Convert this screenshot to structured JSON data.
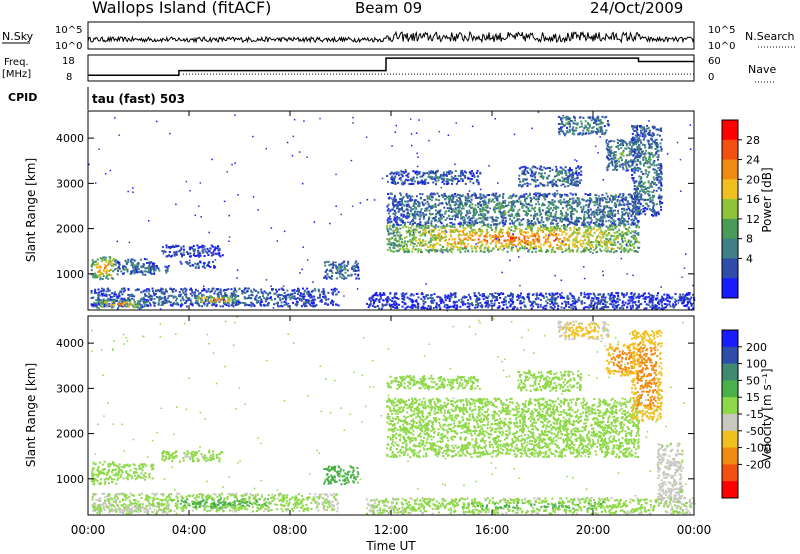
{
  "header": {
    "station": "Wallops Island (fitACF)",
    "beam": "Beam 09",
    "date": "24/Oct/2009"
  },
  "time_axis": {
    "label": "Time UT",
    "ticks": [
      "00:00",
      "04:00",
      "08:00",
      "12:00",
      "16:00",
      "20:00",
      "00:00"
    ]
  },
  "sky_panel": {
    "left_label": "N.Sky",
    "right_label": "N.Search",
    "left_ticks": [
      "10^5",
      "10^0"
    ],
    "right_ticks": [
      "10^5",
      "10^0"
    ]
  },
  "freq_panel": {
    "left_label_1": "Freq.",
    "left_label_2": "[MHz]",
    "right_label": "Nave",
    "left_ticks": [
      "18",
      "8"
    ],
    "right_ticks": [
      "60",
      "0"
    ]
  },
  "cpid": {
    "label": "CPID",
    "mode": "tau (fast) 503"
  },
  "power_panel": {
    "ylabel": "Slant Range [km]",
    "yticks": [
      "1000",
      "2000",
      "3000",
      "4000"
    ],
    "colorbar_label": "Power [dB]",
    "colorbar_ticks": [
      "4",
      "8",
      "12",
      "16",
      "20",
      "24",
      "28"
    ],
    "colors": [
      "#1a1aff",
      "#2e4ca8",
      "#3f7f8a",
      "#4a9a5a",
      "#8ec43a",
      "#f0c020",
      "#f08a10",
      "#f05010",
      "#ff0000"
    ]
  },
  "velocity_panel": {
    "ylabel": "Slant Range [km]",
    "yticks": [
      "1000",
      "2000",
      "3000",
      "4000"
    ],
    "colorbar_label": "Velocity [m s⁻¹]",
    "colorbar_ticks": [
      "200",
      "100",
      "50",
      "15",
      "-15",
      "-50",
      "-100",
      "-200"
    ],
    "colors": [
      "#1a1aff",
      "#2e4ca8",
      "#3f8a70",
      "#4ab04a",
      "#8fd84a",
      "#c8c8c0",
      "#f0c020",
      "#f08a10",
      "#f05010",
      "#ff0000"
    ]
  },
  "chart_data": {
    "type": "heatmap",
    "x_unit": "hours UT",
    "xlim": [
      0,
      24
    ],
    "ylim": [
      200,
      4600
    ],
    "freq": {
      "xlim": [
        0,
        24
      ],
      "ylim": [
        8,
        18
      ],
      "steps": [
        {
          "from": 0,
          "to": 3.6,
          "value": 10.2
        },
        {
          "from": 3.6,
          "to": 11.8,
          "value": 12.0
        },
        {
          "from": 11.8,
          "to": 21.8,
          "value": 16.8
        },
        {
          "from": 21.8,
          "to": 24,
          "value": 15.5
        }
      ]
    },
    "nave_level": 16,
    "power_regions": [
      {
        "x": [
          0.1,
          1.1
        ],
        "y": [
          900,
          1400
        ],
        "core": 26,
        "edge": 10
      },
      {
        "x": [
          1.1,
          2.6
        ],
        "y": [
          1000,
          1350
        ],
        "core": 10,
        "edge": 5
      },
      {
        "x": [
          1.7,
          3.2
        ],
        "y": [
          1050,
          1200
        ],
        "core": 10,
        "edge": 5
      },
      {
        "x": [
          2.9,
          5.3
        ],
        "y": [
          1400,
          1650
        ],
        "core": 6,
        "edge": 3
      },
      {
        "x": [
          3.6,
          5.0
        ],
        "y": [
          1150,
          1300
        ],
        "core": 8,
        "edge": 4
      },
      {
        "x": [
          0.1,
          9.9
        ],
        "y": [
          300,
          700
        ],
        "core": 8,
        "edge": 4
      },
      {
        "x": [
          0.2,
          2.3
        ],
        "y": [
          250,
          450
        ],
        "core": 24,
        "edge": 8
      },
      {
        "x": [
          4.2,
          5.8
        ],
        "y": [
          380,
          520
        ],
        "core": 27,
        "edge": 12
      },
      {
        "x": [
          9.3,
          10.7
        ],
        "y": [
          900,
          1300
        ],
        "core": 10,
        "edge": 5
      },
      {
        "x": [
          11.8,
          21.8
        ],
        "y": [
          1500,
          2100
        ],
        "core": 26,
        "edge": 12
      },
      {
        "x": [
          11.8,
          21.8
        ],
        "y": [
          2100,
          2800
        ],
        "core": 12,
        "edge": 6
      },
      {
        "x": [
          11.8,
          15.5
        ],
        "y": [
          3000,
          3300
        ],
        "core": 8,
        "edge": 4
      },
      {
        "x": [
          17.0,
          19.5
        ],
        "y": [
          2950,
          3400
        ],
        "core": 10,
        "edge": 5
      },
      {
        "x": [
          18.6,
          20.6
        ],
        "y": [
          4100,
          4500
        ],
        "core": 12,
        "edge": 6
      },
      {
        "x": [
          20.5,
          21.8
        ],
        "y": [
          3300,
          4000
        ],
        "core": 14,
        "edge": 6
      },
      {
        "x": [
          21.5,
          22.7
        ],
        "y": [
          2300,
          4300
        ],
        "core": 12,
        "edge": 5
      },
      {
        "x": [
          11.0,
          24.0
        ],
        "y": [
          250,
          600
        ],
        "core": 6,
        "edge": 3
      }
    ],
    "velocity_regions": [
      {
        "x": [
          0.1,
          1.1
        ],
        "y": [
          900,
          1400
        ],
        "core": 0,
        "edge": 0
      },
      {
        "x": [
          1.1,
          2.6
        ],
        "y": [
          1000,
          1350
        ],
        "core": 0,
        "edge": 0
      },
      {
        "x": [
          2.9,
          5.3
        ],
        "y": [
          1400,
          1650
        ],
        "core": -20,
        "edge": 5
      },
      {
        "x": [
          0.1,
          9.9
        ],
        "y": [
          300,
          700
        ],
        "core": 30,
        "edge": -20
      },
      {
        "x": [
          0.2,
          3.2
        ],
        "y": [
          250,
          450
        ],
        "core": -30,
        "edge": -10
      },
      {
        "x": [
          4.2,
          5.8
        ],
        "y": [
          380,
          520
        ],
        "core": 30,
        "edge": 20
      },
      {
        "x": [
          9.3,
          10.7
        ],
        "y": [
          900,
          1300
        ],
        "core": 35,
        "edge": 20
      },
      {
        "x": [
          11.8,
          21.8
        ],
        "y": [
          1500,
          2200
        ],
        "core": 0,
        "edge": 0
      },
      {
        "x": [
          11.8,
          21.8
        ],
        "y": [
          2200,
          2800
        ],
        "core": 0,
        "edge": 0
      },
      {
        "x": [
          11.8,
          15.5
        ],
        "y": [
          3000,
          3300
        ],
        "core": 0,
        "edge": 0
      },
      {
        "x": [
          17.0,
          19.5
        ],
        "y": [
          2950,
          3400
        ],
        "core": 0,
        "edge": 0
      },
      {
        "x": [
          18.6,
          20.6
        ],
        "y": [
          4100,
          4500
        ],
        "core": -80,
        "edge": -40
      },
      {
        "x": [
          20.5,
          21.8
        ],
        "y": [
          3300,
          4000
        ],
        "core": -150,
        "edge": -80
      },
      {
        "x": [
          21.5,
          22.7
        ],
        "y": [
          2300,
          4300
        ],
        "core": -180,
        "edge": -60
      },
      {
        "x": [
          22.5,
          23.5
        ],
        "y": [
          500,
          1800
        ],
        "core": -40,
        "edge": -20
      },
      {
        "x": [
          11.0,
          24.0
        ],
        "y": [
          250,
          600
        ],
        "core": 30,
        "edge": -20
      }
    ]
  }
}
